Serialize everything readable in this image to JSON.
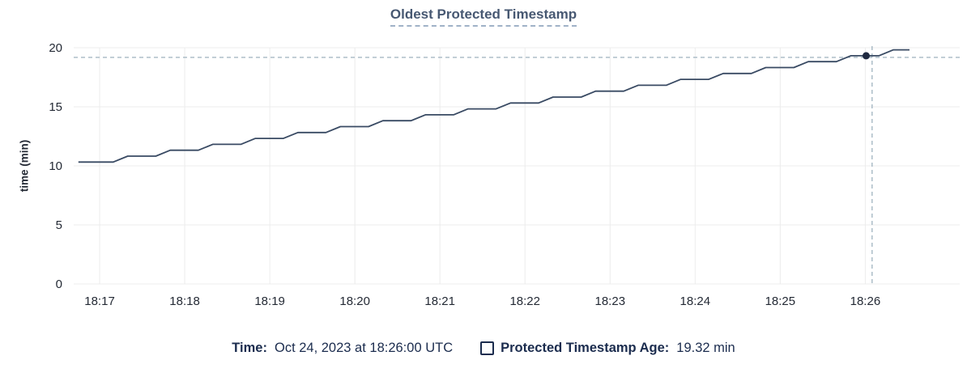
{
  "page": {
    "title": "Oldest Protected Timestamp"
  },
  "colors": {
    "line": "#394a63",
    "dot": "#1f2940",
    "grid": "#ececec",
    "crosshair": "#a6b8c4",
    "title": "#475872",
    "tick_text": "#242a35",
    "legend_text": "#1b2c4e"
  },
  "chart_data": {
    "type": "line",
    "title": "Oldest Protected Timestamp",
    "xlabel": "",
    "ylabel": "time (min)",
    "ylim": [
      0,
      20
    ],
    "y_ticks": [
      0,
      5,
      10,
      15,
      20
    ],
    "xlim": [
      16.695,
      27.11
    ],
    "x_ticks": [
      {
        "t": 17,
        "label": "18:17"
      },
      {
        "t": 18,
        "label": "18:18"
      },
      {
        "t": 19,
        "label": "18:19"
      },
      {
        "t": 20,
        "label": "18:20"
      },
      {
        "t": 21,
        "label": "18:21"
      },
      {
        "t": 22,
        "label": "18:22"
      },
      {
        "t": 23,
        "label": "18:23"
      },
      {
        "t": 24,
        "label": "18:24"
      },
      {
        "t": 25,
        "label": "18:25"
      },
      {
        "t": 26,
        "label": "18:26"
      }
    ],
    "grid": true,
    "legend_position": "bottom",
    "series": [
      {
        "name": "Protected Timestamp Age",
        "unit": "min",
        "points": [
          [
            16.75,
            10.32
          ],
          [
            17.16,
            10.32
          ],
          [
            17.33,
            10.82
          ],
          [
            17.66,
            10.82
          ],
          [
            17.83,
            11.32
          ],
          [
            18.16,
            11.32
          ],
          [
            18.33,
            11.82
          ],
          [
            18.66,
            11.82
          ],
          [
            18.83,
            12.32
          ],
          [
            19.16,
            12.32
          ],
          [
            19.33,
            12.82
          ],
          [
            19.66,
            12.82
          ],
          [
            19.83,
            13.32
          ],
          [
            20.16,
            13.32
          ],
          [
            20.33,
            13.82
          ],
          [
            20.66,
            13.82
          ],
          [
            20.83,
            14.32
          ],
          [
            21.16,
            14.32
          ],
          [
            21.33,
            14.82
          ],
          [
            21.66,
            14.82
          ],
          [
            21.83,
            15.32
          ],
          [
            22.16,
            15.32
          ],
          [
            22.33,
            15.82
          ],
          [
            22.66,
            15.82
          ],
          [
            22.83,
            16.32
          ],
          [
            23.16,
            16.32
          ],
          [
            23.33,
            16.82
          ],
          [
            23.66,
            16.82
          ],
          [
            23.83,
            17.32
          ],
          [
            24.16,
            17.32
          ],
          [
            24.33,
            17.82
          ],
          [
            24.66,
            17.82
          ],
          [
            24.83,
            18.32
          ],
          [
            25.16,
            18.32
          ],
          [
            25.33,
            18.82
          ],
          [
            25.66,
            18.82
          ],
          [
            25.83,
            19.32
          ],
          [
            26.16,
            19.32
          ],
          [
            26.33,
            19.82
          ],
          [
            26.52,
            19.82
          ]
        ]
      }
    ],
    "crosshair": {
      "hover_t": 26.08,
      "point_t": 26.01,
      "value": 19.32,
      "hover_time_label": "18:26"
    }
  },
  "legend": {
    "time_label": "Time:",
    "time_value": "Oct 24, 2023 at 18:26:00 UTC",
    "series_label": "Protected Timestamp Age:",
    "series_value": "19.32 min"
  }
}
